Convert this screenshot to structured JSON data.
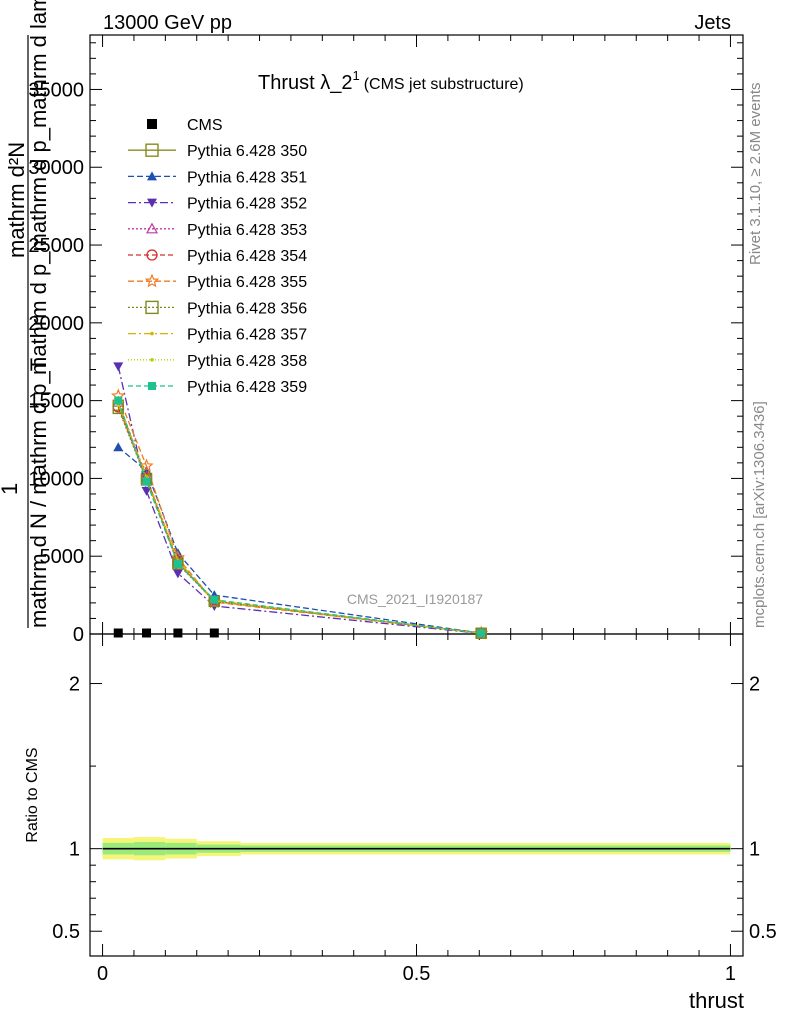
{
  "header": {
    "left": "13000 GeV pp",
    "right": "Jets"
  },
  "title": {
    "main": "Thrust λ_2",
    "sup": "1",
    "sub": "(CMS jet substructure)"
  },
  "watermark": "CMS_2021_I1920187",
  "side_labels": {
    "rivet": "Rivet 3.1.10, ≥ 2.6M events",
    "mcplots": "mcplots.cern.ch [arXiv:1306.3436]"
  },
  "ylabel_lines": [
    "mathrm d²N",
    "mathrm d p_mathrm d p_mathrm d lambda",
    "1",
    "mathrm d N / mathrm d p_T"
  ],
  "ratio_ylabel": "Ratio to CMS",
  "xlabel": "thrust",
  "colors": {
    "cms": "#000000",
    "band_outer": "#f5f57a",
    "band_inner": "#9bea7c"
  },
  "chart_data": {
    "type": "line",
    "x_bins": [
      [
        0,
        0.05
      ],
      [
        0.05,
        0.1
      ],
      [
        0.1,
        0.15
      ],
      [
        0.15,
        0.22
      ],
      [
        0.22,
        1.0
      ]
    ],
    "x": [
      0.025,
      0.07,
      0.12,
      0.178,
      0.603
    ],
    "xlim": [
      -0.02,
      1.02
    ],
    "main_ylim": [
      0,
      38500
    ],
    "main_yticks": [
      0,
      5000,
      10000,
      15000,
      20000,
      25000,
      30000,
      35000
    ],
    "main_ytick_labels": [
      "0",
      "5000",
      "10000",
      "15000",
      "20000",
      "25000",
      "30000",
      "35000"
    ],
    "xticks": [
      0,
      0.5,
      1
    ],
    "xtick_labels": [
      "0",
      "0.5",
      "1"
    ],
    "ratio_ylim": [
      0.35,
      2.3
    ],
    "ratio_yticks": [
      0.5,
      1,
      2
    ],
    "ratio_ytick_labels": [
      "0.5",
      "1",
      "2"
    ],
    "cms": [
      0,
      0,
      0,
      0
    ],
    "cms_x": [
      0.025,
      0.07,
      0.12,
      0.178
    ],
    "series": [
      {
        "name": "Pythia 6.428 350",
        "color": "#8a8a20",
        "dash": "",
        "marker": "open-square",
        "values": [
          14700,
          10000,
          4600,
          2100,
          50
        ]
      },
      {
        "name": "Pythia 6.428 351",
        "color": "#1f4faf",
        "dash": "6,3",
        "marker": "filled-triangle-up",
        "values": [
          12000,
          10500,
          5200,
          2500,
          60
        ]
      },
      {
        "name": "Pythia 6.428 352",
        "color": "#5a30b0",
        "dash": "8,3,2,3",
        "marker": "filled-triangle-down",
        "values": [
          17200,
          9200,
          3900,
          1800,
          40
        ]
      },
      {
        "name": "Pythia 6.428 353",
        "color": "#c0399f",
        "dash": "2,2",
        "marker": "open-triangle-up",
        "values": [
          14900,
          10100,
          4700,
          2100,
          50
        ]
      },
      {
        "name": "Pythia 6.428 354",
        "color": "#d22d2d",
        "dash": "5,3",
        "marker": "open-circle",
        "values": [
          14600,
          10000,
          4600,
          2100,
          50
        ]
      },
      {
        "name": "Pythia 6.428 355",
        "color": "#f07a20",
        "dash": "6,3",
        "marker": "open-star",
        "values": [
          15300,
          10800,
          4900,
          2050,
          50
        ]
      },
      {
        "name": "Pythia 6.428 356",
        "color": "#7d8a1e",
        "dash": "2,2",
        "marker": "open-square",
        "values": [
          14500,
          9900,
          4500,
          2100,
          50
        ]
      },
      {
        "name": "Pythia 6.428 357",
        "color": "#d4b400",
        "dash": "8,3,2,3",
        "marker": "small-dot",
        "values": [
          14800,
          10100,
          4700,
          2150,
          50
        ]
      },
      {
        "name": "Pythia 6.428 358",
        "color": "#b4d200",
        "dash": "1,2",
        "marker": "small-dot",
        "values": [
          14700,
          10000,
          4650,
          2100,
          50
        ]
      },
      {
        "name": "Pythia 6.428 359",
        "color": "#20c090",
        "dash": "5,3",
        "marker": "filled-square",
        "values": [
          15000,
          9800,
          4500,
          2200,
          50
        ]
      }
    ],
    "ratio_band": {
      "bins": [
        [
          0,
          0.05
        ],
        [
          0.05,
          0.1
        ],
        [
          0.1,
          0.15
        ],
        [
          0.15,
          0.22
        ],
        [
          0.22,
          1.0
        ]
      ],
      "outer": [
        0.065,
        0.07,
        0.06,
        0.045,
        0.035
      ],
      "inner": [
        0.035,
        0.04,
        0.035,
        0.025,
        0.02
      ]
    },
    "ratio_line": 1
  }
}
